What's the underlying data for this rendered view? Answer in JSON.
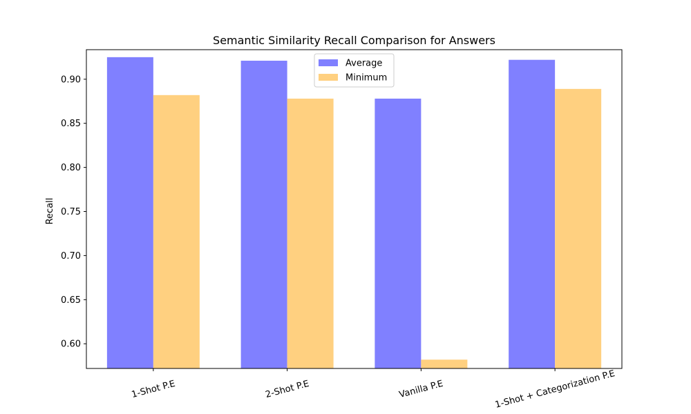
{
  "chart_data": {
    "type": "bar",
    "title": "Semantic Similarity Recall Comparison for Answers",
    "xlabel": "",
    "ylabel": "Recall",
    "categories": [
      "1-Shot P.E",
      "2-Shot P.E",
      "Vanilla P.E",
      "1-Shot + Categorization P.E"
    ],
    "series": [
      {
        "name": "Average",
        "values": [
          0.925,
          0.921,
          0.878,
          0.922
        ],
        "color": "#8080ff"
      },
      {
        "name": "Minimum",
        "values": [
          0.882,
          0.878,
          0.582,
          0.889
        ],
        "color": "#ffd080"
      }
    ],
    "ylim": [
      0.572,
      0.9335
    ],
    "yticks": [
      0.6,
      0.65,
      0.7,
      0.75,
      0.8,
      0.85,
      0.9
    ],
    "ytick_labels": [
      "0.60",
      "0.65",
      "0.70",
      "0.75",
      "0.80",
      "0.85",
      "0.90"
    ],
    "grid": false,
    "legend_position": "top-center",
    "xtick_rotation": "slanted"
  }
}
